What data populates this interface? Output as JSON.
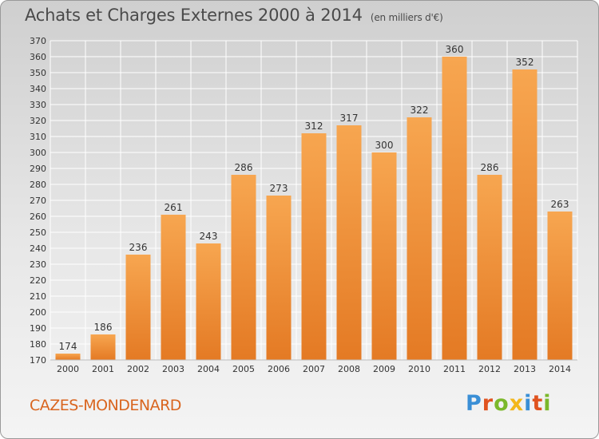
{
  "header": {
    "title": "Achats et Charges Externes 2000 à 2014",
    "unit": "(en milliers d'€)"
  },
  "footer": {
    "commune": "CAZES-MONDENARD",
    "logo_text": "Proxiti",
    "logo_colors": [
      "#3a8fd6",
      "#e0531f",
      "#7bb82b",
      "#f3b71b",
      "#3a8fd6",
      "#e0531f",
      "#7bb82b"
    ]
  },
  "colors": {
    "bar_light": "#f7a650",
    "bar_dark": "#e47a24",
    "grid": "#ffffff",
    "text": "#333333"
  },
  "chart_data": {
    "type": "bar",
    "title": "Achats et Charges Externes 2000 à 2014",
    "xlabel": "",
    "ylabel": "",
    "categories": [
      "2000",
      "2001",
      "2002",
      "2003",
      "2004",
      "2005",
      "2006",
      "2007",
      "2008",
      "2009",
      "2010",
      "2011",
      "2012",
      "2013",
      "2014"
    ],
    "values": [
      174,
      186,
      236,
      261,
      243,
      286,
      273,
      312,
      317,
      300,
      322,
      360,
      286,
      352,
      263
    ],
    "ylim": [
      170,
      370
    ],
    "yticks": [
      170,
      180,
      190,
      200,
      210,
      220,
      230,
      240,
      250,
      260,
      270,
      280,
      290,
      300,
      310,
      320,
      330,
      340,
      350,
      360,
      370
    ],
    "grid": true,
    "data_labels": true
  }
}
